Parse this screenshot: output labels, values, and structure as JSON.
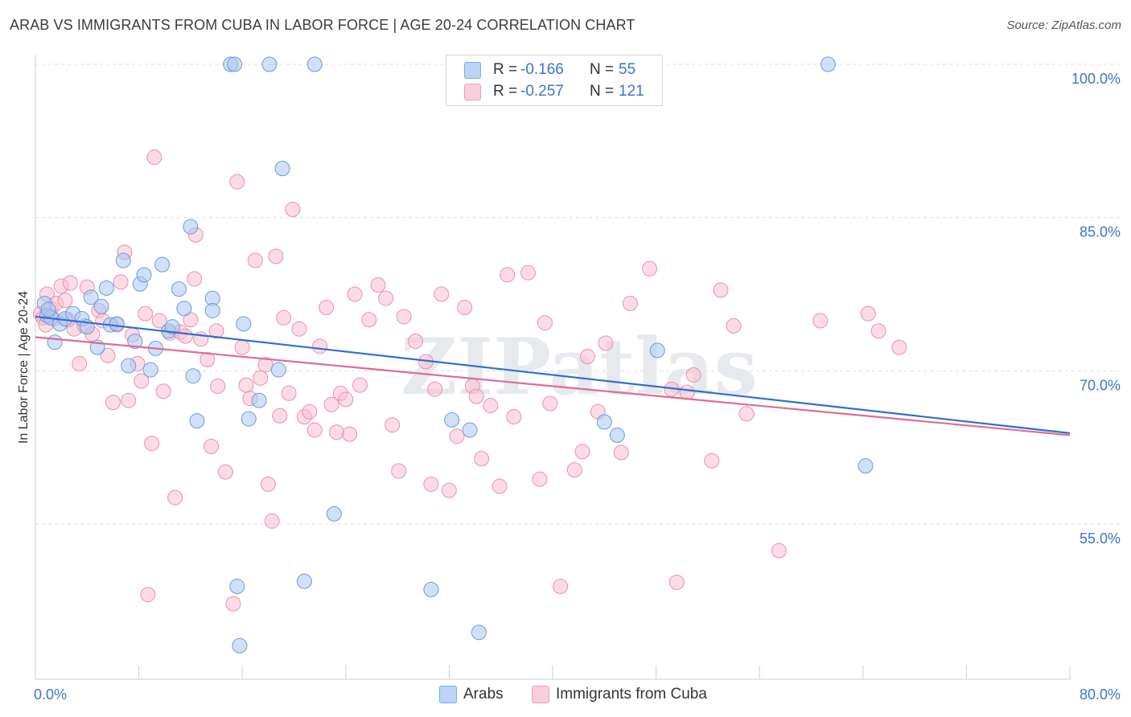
{
  "title": "ARAB VS IMMIGRANTS FROM CUBA IN LABOR FORCE | AGE 20-24 CORRELATION CHART",
  "source": "Source: ZipAtlas.com",
  "watermark": "ZIPatlas",
  "legend": {
    "rows": [
      {
        "r_label": "R =",
        "r_value": "-0.166",
        "n_label": "N =",
        "n_value": "55",
        "color": "#a9c8f0"
      },
      {
        "r_label": "R =",
        "r_value": "-0.257",
        "n_label": "N =",
        "n_value": "121",
        "color": "#f7bfd0"
      }
    ]
  },
  "bottom_legend": {
    "series1": "Arabs",
    "series2": "Immigrants from Cuba"
  },
  "chart_data": {
    "type": "scatter",
    "title": "ARAB VS IMMIGRANTS FROM CUBA IN LABOR FORCE | AGE 20-24 CORRELATION CHART",
    "xlabel": "",
    "ylabel": "In Labor Force | Age 20-24",
    "xlim": [
      0,
      80
    ],
    "ylim": [
      42,
      101.5
    ],
    "y_ticks": [
      {
        "value": 55,
        "label": "55.0%"
      },
      {
        "value": 70,
        "label": "70.0%"
      },
      {
        "value": 85,
        "label": "85.0%"
      },
      {
        "value": 100,
        "label": "100.0%"
      }
    ],
    "x_tick_labels": {
      "left": "0.0%",
      "right": "80.0%"
    },
    "x_minor_ticks": [
      0,
      8,
      16,
      24,
      32,
      40,
      48,
      56,
      64,
      72,
      80
    ],
    "grid": true,
    "series": [
      {
        "name": "Arabs",
        "color": "#a9c8f0",
        "stroke": "#6a9be0",
        "trend_color": "#2f6fcf",
        "trend": {
          "x": [
            0,
            80
          ],
          "y": [
            75.3,
            63.9
          ]
        },
        "points": [
          [
            0.7,
            76.6
          ],
          [
            0.9,
            75.4
          ],
          [
            1.2,
            75.2
          ],
          [
            1.5,
            72.8
          ],
          [
            1.9,
            74.6
          ],
          [
            2.3,
            75.1
          ],
          [
            2.9,
            75.6
          ],
          [
            3.6,
            75.1
          ],
          [
            4.0,
            74.3
          ],
          [
            4.3,
            77.2
          ],
          [
            4.8,
            72.3
          ],
          [
            5.1,
            76.3
          ],
          [
            5.5,
            78.1
          ],
          [
            5.8,
            74.5
          ],
          [
            6.3,
            74.6
          ],
          [
            6.8,
            80.8
          ],
          [
            7.2,
            70.5
          ],
          [
            7.7,
            72.9
          ],
          [
            8.1,
            78.5
          ],
          [
            8.4,
            79.4
          ],
          [
            8.9,
            70.1
          ],
          [
            9.3,
            72.2
          ],
          [
            9.8,
            80.4
          ],
          [
            10.3,
            73.9
          ],
          [
            10.6,
            74.3
          ],
          [
            11.1,
            78.0
          ],
          [
            11.5,
            76.1
          ],
          [
            12.0,
            84.1
          ],
          [
            12.2,
            69.5
          ],
          [
            12.5,
            65.1
          ],
          [
            13.7,
            77.1
          ],
          [
            13.7,
            75.9
          ],
          [
            15.1,
            100.0
          ],
          [
            15.4,
            100.0
          ],
          [
            15.6,
            48.9
          ],
          [
            15.8,
            43.1
          ],
          [
            16.1,
            74.6
          ],
          [
            16.5,
            65.3
          ],
          [
            17.3,
            67.1
          ],
          [
            18.1,
            100.0
          ],
          [
            18.8,
            70.1
          ],
          [
            19.1,
            89.8
          ],
          [
            20.8,
            49.4
          ],
          [
            21.6,
            100.0
          ],
          [
            23.1,
            56.0
          ],
          [
            30.6,
            48.6
          ],
          [
            32.2,
            65.2
          ],
          [
            33.6,
            64.2
          ],
          [
            34.3,
            44.4
          ],
          [
            44.0,
            65.0
          ],
          [
            45.0,
            63.7
          ],
          [
            48.1,
            72.0
          ],
          [
            61.3,
            100.0
          ],
          [
            64.2,
            60.7
          ],
          [
            1.0,
            76.0
          ]
        ]
      },
      {
        "name": "Immigrants from Cuba",
        "color": "#f7bfd0",
        "stroke": "#ec8fae",
        "trend_color": "#e06b95",
        "trend": {
          "x": [
            0,
            80
          ],
          "y": [
            73.3,
            63.7
          ]
        },
        "points": [
          [
            0.4,
            75.6
          ],
          [
            0.6,
            75.2
          ],
          [
            0.9,
            77.5
          ],
          [
            1.2,
            76.1
          ],
          [
            1.4,
            75.1
          ],
          [
            1.6,
            76.6
          ],
          [
            2.0,
            78.3
          ],
          [
            2.3,
            76.9
          ],
          [
            2.7,
            78.6
          ],
          [
            3.0,
            74.1
          ],
          [
            3.4,
            70.7
          ],
          [
            3.8,
            74.4
          ],
          [
            4.0,
            78.2
          ],
          [
            4.4,
            73.6
          ],
          [
            4.9,
            75.9
          ],
          [
            5.2,
            74.9
          ],
          [
            5.6,
            71.5
          ],
          [
            6.0,
            66.9
          ],
          [
            6.3,
            74.5
          ],
          [
            6.6,
            78.7
          ],
          [
            6.9,
            81.6
          ],
          [
            7.2,
            67.1
          ],
          [
            7.5,
            73.5
          ],
          [
            7.9,
            70.7
          ],
          [
            8.2,
            69.0
          ],
          [
            8.5,
            75.6
          ],
          [
            8.7,
            48.1
          ],
          [
            9.0,
            62.9
          ],
          [
            9.2,
            90.9
          ],
          [
            9.6,
            74.9
          ],
          [
            9.9,
            68.0
          ],
          [
            10.4,
            73.7
          ],
          [
            10.8,
            57.6
          ],
          [
            11.2,
            73.8
          ],
          [
            11.6,
            73.4
          ],
          [
            12.0,
            75.0
          ],
          [
            12.3,
            79.0
          ],
          [
            12.4,
            83.3
          ],
          [
            12.8,
            73.1
          ],
          [
            13.3,
            71.1
          ],
          [
            13.6,
            62.6
          ],
          [
            14.0,
            73.9
          ],
          [
            14.1,
            68.5
          ],
          [
            14.7,
            60.1
          ],
          [
            15.3,
            47.2
          ],
          [
            15.6,
            88.5
          ],
          [
            16.0,
            72.3
          ],
          [
            16.3,
            68.6
          ],
          [
            16.6,
            67.3
          ],
          [
            17.0,
            80.8
          ],
          [
            17.4,
            69.3
          ],
          [
            17.8,
            70.6
          ],
          [
            18.0,
            58.9
          ],
          [
            18.3,
            55.3
          ],
          [
            18.6,
            81.2
          ],
          [
            18.9,
            65.6
          ],
          [
            19.2,
            75.2
          ],
          [
            19.6,
            67.8
          ],
          [
            19.9,
            85.8
          ],
          [
            20.4,
            74.1
          ],
          [
            20.8,
            65.5
          ],
          [
            21.2,
            66.0
          ],
          [
            21.6,
            64.2
          ],
          [
            22.0,
            72.4
          ],
          [
            22.5,
            76.2
          ],
          [
            22.9,
            66.7
          ],
          [
            23.3,
            64.0
          ],
          [
            23.6,
            67.8
          ],
          [
            24.0,
            67.2
          ],
          [
            24.3,
            63.8
          ],
          [
            24.7,
            77.5
          ],
          [
            25.1,
            68.6
          ],
          [
            25.8,
            75.0
          ],
          [
            26.5,
            78.4
          ],
          [
            27.1,
            77.1
          ],
          [
            27.6,
            64.7
          ],
          [
            28.1,
            60.2
          ],
          [
            28.5,
            75.3
          ],
          [
            29.4,
            72.9
          ],
          [
            30.2,
            70.9
          ],
          [
            30.6,
            58.9
          ],
          [
            30.9,
            68.2
          ],
          [
            31.4,
            77.5
          ],
          [
            32.0,
            58.3
          ],
          [
            32.6,
            63.6
          ],
          [
            33.2,
            76.2
          ],
          [
            33.8,
            68.5
          ],
          [
            34.1,
            67.5
          ],
          [
            34.5,
            61.4
          ],
          [
            35.2,
            66.6
          ],
          [
            35.9,
            58.7
          ],
          [
            36.5,
            79.4
          ],
          [
            37.0,
            65.5
          ],
          [
            38.1,
            79.6
          ],
          [
            39.0,
            59.4
          ],
          [
            39.4,
            74.7
          ],
          [
            39.8,
            66.8
          ],
          [
            40.6,
            48.9
          ],
          [
            41.7,
            60.3
          ],
          [
            42.3,
            62.1
          ],
          [
            42.7,
            71.4
          ],
          [
            43.5,
            66.0
          ],
          [
            44.1,
            72.7
          ],
          [
            45.3,
            62.0
          ],
          [
            46.0,
            76.6
          ],
          [
            47.5,
            80.0
          ],
          [
            49.2,
            68.2
          ],
          [
            49.6,
            49.3
          ],
          [
            50.4,
            67.9
          ],
          [
            50.9,
            69.6
          ],
          [
            52.3,
            61.2
          ],
          [
            53.0,
            77.9
          ],
          [
            54.0,
            74.4
          ],
          [
            55.0,
            65.8
          ],
          [
            57.5,
            52.4
          ],
          [
            60.7,
            74.9
          ],
          [
            64.4,
            75.6
          ],
          [
            65.2,
            73.9
          ],
          [
            66.8,
            72.3
          ],
          [
            0.8,
            74.5
          ],
          [
            2.5,
            75.0
          ]
        ]
      }
    ]
  }
}
